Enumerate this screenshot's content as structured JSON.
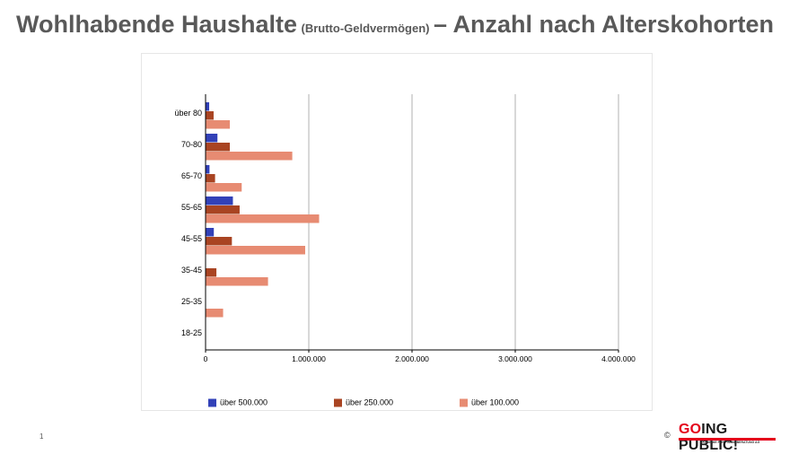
{
  "title": {
    "main_1": "Wohlhabende Haushalte",
    "sub": "(Brutto-Geldvermögen)",
    "main_2": "– Anzahl nach Alterskohorten"
  },
  "footer": {
    "page_number": "1",
    "copyright": "©",
    "brand_go": "GO",
    "brand_rest": "ING PUBLIC!",
    "brand_tagline": "AKADEMIE FÜR FINANZBERATUNG AG"
  },
  "chart_data": {
    "type": "bar",
    "orientation": "horizontal",
    "categories": [
      "über 80",
      "70-80",
      "65-70",
      "55-65",
      "45-55",
      "35-45",
      "25-35",
      "18-25"
    ],
    "series": [
      {
        "name": "über 500.000",
        "color": "#3241b8",
        "values": [
          35000,
          115000,
          38000,
          265000,
          80000,
          0,
          0,
          0
        ]
      },
      {
        "name": "über 250.000",
        "color": "#a94422",
        "values": [
          78000,
          235000,
          92000,
          330000,
          255000,
          105000,
          0,
          0
        ]
      },
      {
        "name": "über 100.000",
        "color": "#e78b72",
        "values": [
          235000,
          840000,
          350000,
          1100000,
          965000,
          605000,
          170000,
          0
        ]
      }
    ],
    "xlim": [
      0,
      4000000
    ],
    "xticks": [
      0,
      1000000,
      2000000,
      3000000,
      4000000
    ],
    "xtick_labels": [
      "0",
      "1.000.000",
      "2.000.000",
      "3.000.000",
      "4.000.000"
    ],
    "grid": "vertical",
    "legend_position": "bottom"
  }
}
